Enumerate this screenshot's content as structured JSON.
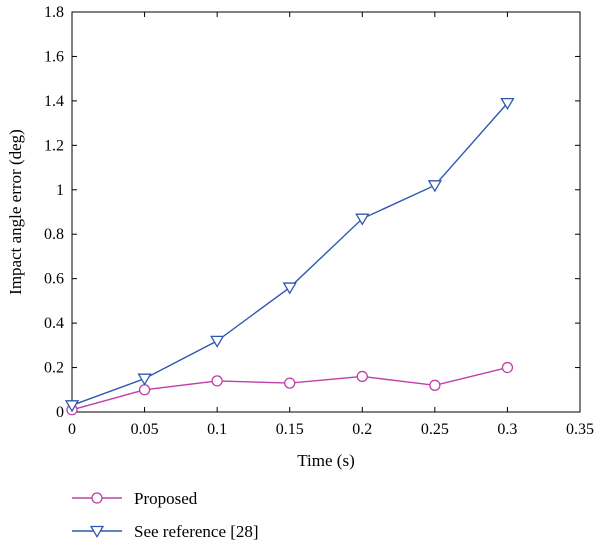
{
  "chart_data": {
    "type": "line",
    "title": "",
    "xlabel": "Time (s)",
    "ylabel": "Impact angle error (deg)",
    "xlim": [
      0,
      0.35
    ],
    "ylim": [
      0,
      1.8
    ],
    "xticks": [
      "0",
      "0.05",
      "0.1",
      "0.15",
      "0.2",
      "0.25",
      "0.3",
      "0.35"
    ],
    "yticks": [
      "0",
      "0.2",
      "0.4",
      "0.6",
      "0.8",
      "1",
      "1.2",
      "1.4",
      "1.6",
      "1.8"
    ],
    "x": [
      0,
      0.05,
      0.1,
      0.15,
      0.2,
      0.25,
      0.3
    ],
    "grid": false,
    "legend_position": "bottom-left outside plot",
    "series": [
      {
        "name": "Proposed",
        "values": [
          0.01,
          0.1,
          0.14,
          0.13,
          0.16,
          0.12,
          0.2
        ],
        "color": "#c040a8",
        "marker": "circle"
      },
      {
        "name": "See reference [28]",
        "values": [
          0.03,
          0.15,
          0.32,
          0.56,
          0.87,
          1.02,
          1.39
        ],
        "color": "#3057b0",
        "marker": "triangle-down"
      }
    ]
  }
}
